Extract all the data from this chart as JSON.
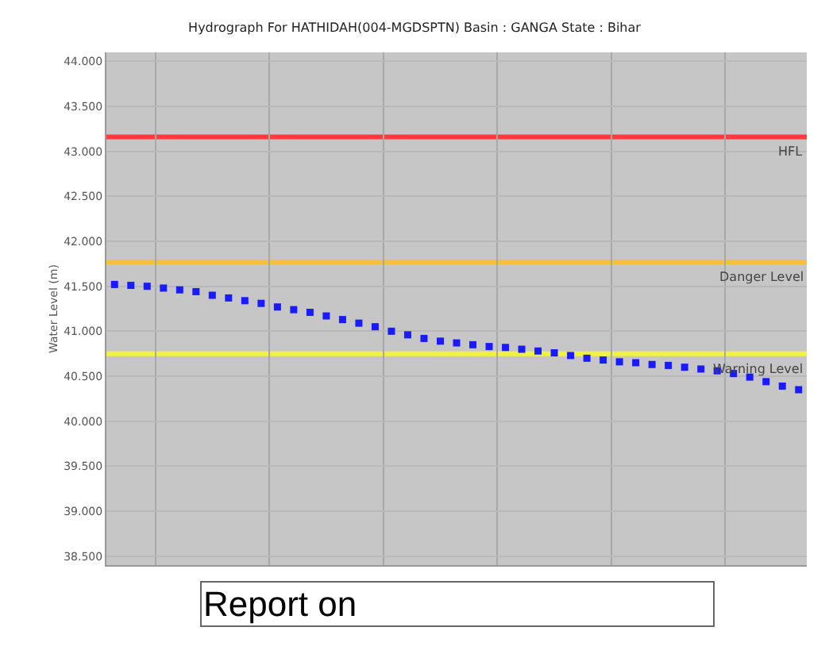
{
  "chart_data": {
    "type": "scatter",
    "title": "Hydrograph For HATHIDAH(004-MGDSPTN) Basin : GANGA State : Bihar",
    "ylabel": "Water Level (m)",
    "categories": [
      null,
      null,
      null,
      null,
      null,
      null,
      null,
      null,
      null,
      null,
      null,
      null,
      null,
      null,
      null,
      null,
      null,
      null,
      null,
      null,
      null,
      null,
      null,
      null,
      null,
      null,
      null,
      null,
      null,
      null,
      null,
      null,
      null,
      null,
      null,
      null,
      null,
      null,
      null,
      null,
      null,
      null,
      null
    ],
    "series": [
      {
        "color": "#1a1aff",
        "values": [
          41.52,
          41.51,
          41.5,
          41.48,
          41.46,
          41.44,
          41.4,
          41.37,
          41.34,
          41.31,
          41.27,
          41.24,
          41.21,
          41.17,
          41.13,
          41.09,
          41.05,
          41.0,
          40.96,
          40.92,
          40.89,
          40.87,
          40.85,
          40.83,
          40.82,
          40.8,
          40.78,
          40.76,
          40.73,
          40.7,
          40.68,
          40.66,
          40.65,
          40.63,
          40.62,
          40.6,
          40.58,
          40.56,
          40.53,
          40.49,
          40.44,
          40.39,
          40.35
        ]
      }
    ],
    "marker": "square",
    "ylim": [
      38.4,
      44.1
    ],
    "yticks": [
      {
        "value": 38.5,
        "label": "38.500"
      },
      {
        "value": 39,
        "label": "39.000"
      },
      {
        "value": 39.5,
        "label": "39.500"
      },
      {
        "value": 40,
        "label": "40.000"
      },
      {
        "value": 40.5,
        "label": "40.500"
      },
      {
        "value": 41,
        "label": "41.000"
      },
      {
        "value": 41.5,
        "label": "41.500"
      },
      {
        "value": 42,
        "label": "42.000"
      },
      {
        "value": 42.5,
        "label": "42.500"
      },
      {
        "value": 43,
        "label": "43.000"
      },
      {
        "value": 43.5,
        "label": "43.500"
      },
      {
        "value": 44,
        "label": "44.000"
      }
    ],
    "ref_lines": [
      {
        "axis": "y",
        "value": 43.16,
        "label": "HFL",
        "color": "#ff3b3b"
      },
      {
        "axis": "y",
        "value": 41.77,
        "label": "Danger Level",
        "color": "#f2c23a"
      },
      {
        "axis": "y",
        "value": 40.75,
        "label": "Warning Level",
        "color": "#f2f23a"
      }
    ],
    "grid": true,
    "tick_labels": "y",
    "annotations": [
      "Report on"
    ]
  }
}
